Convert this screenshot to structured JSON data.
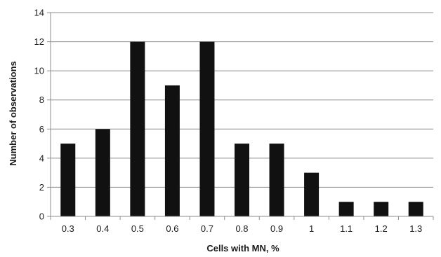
{
  "chart_data": {
    "type": "bar",
    "title": "",
    "xlabel": "Cells with MN, %",
    "ylabel": "Number of observations",
    "categories": [
      "0.3",
      "0.4",
      "0.5",
      "0.6",
      "0.7",
      "0.8",
      "0.9",
      "1",
      "1.1",
      "1.2",
      "1.3"
    ],
    "values": [
      5,
      6,
      12,
      9,
      12,
      5,
      5,
      3,
      1,
      1,
      1
    ],
    "ylim": [
      0,
      14
    ],
    "yticks": [
      "0",
      "2",
      "4",
      "6",
      "8",
      "10",
      "12",
      "14"
    ],
    "grid": true,
    "legend": "none",
    "colors": {
      "bar": "#111111",
      "grid": "#8c8c8c"
    }
  }
}
